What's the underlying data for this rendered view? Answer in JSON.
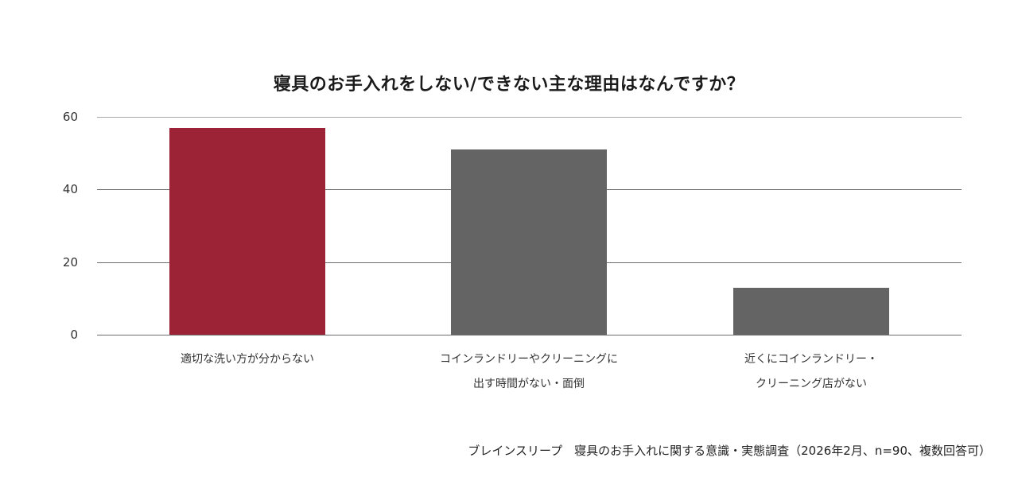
{
  "chart_data": {
    "type": "bar",
    "title": "寝具のお手入れをしない/できない主な理由はなんですか？",
    "categories": [
      "適切な洗い方が分からない",
      "コインランドリーやクリーニングに出す時間がない・面倒",
      "近くにコインランドリー・クリーニング店がない"
    ],
    "category_label_lines": [
      [
        "適切な洗い方が分からない"
      ],
      [
        "コインランドリーやクリーニングに",
        "出す時間がない・面倒"
      ],
      [
        "近くにコインランドリー・",
        "クリーニング店がない"
      ]
    ],
    "values": [
      57,
      51,
      13
    ],
    "bar_colors": [
      "#9b2335",
      "#646464",
      "#646464"
    ],
    "xlabel": "",
    "ylabel": "",
    "ylim": [
      0,
      60
    ],
    "yticks": [
      0,
      20,
      40,
      60
    ],
    "grid": true,
    "legend": null,
    "source": "ブレインスリープ　寝具のお手入れに関する意識・実態調査（2026年2月、n=90、複数回答可）"
  }
}
